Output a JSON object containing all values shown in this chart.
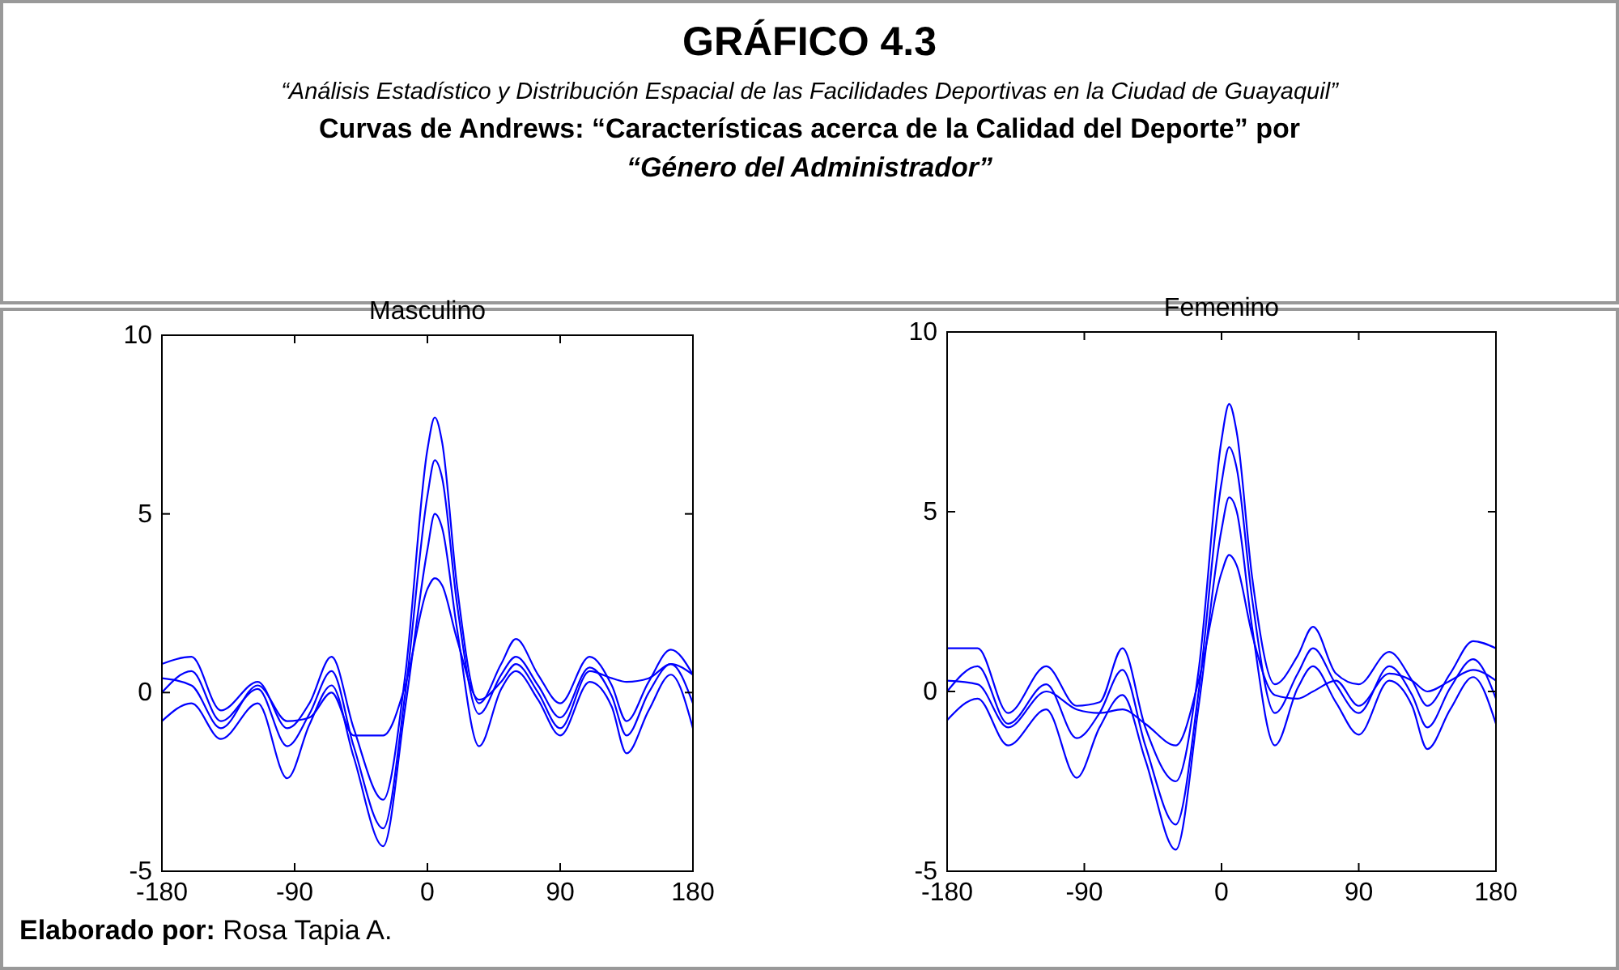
{
  "chart_data": [
    {
      "type": "line",
      "title": "Masculino",
      "xlim": [
        -180,
        180
      ],
      "ylim": [
        -5,
        10
      ],
      "xticks": [
        -180,
        -90,
        0,
        90,
        180
      ],
      "yticks": [
        -5,
        0,
        5,
        10
      ],
      "line_style": "solid",
      "annotations": [
        "GRÁFICO 4.3",
        "“Análisis Estadístico y Distribución Espacial de las Facilidades Deportivas en la Ciudad de Guayaquil”",
        "Curvas de Andrews: “Características acerca de la Calidad del Deporte” por",
        "“Género del Administrador”",
        "Elaborado por: Rosa Tapia A."
      ],
      "x": [
        -180,
        -160,
        -140,
        -115,
        -95,
        -80,
        -65,
        -50,
        -30,
        -15,
        0,
        5,
        10,
        20,
        35,
        50,
        60,
        75,
        90,
        110,
        125,
        135,
        150,
        165,
        180
      ],
      "series": [
        {
          "color": "#0000ff",
          "values": [
            0.8,
            1.0,
            -0.5,
            0.3,
            -1.0,
            -0.3,
            1.0,
            -1.0,
            -3.0,
            0.5,
            6.8,
            7.7,
            7.0,
            3.0,
            -0.3,
            0.8,
            1.5,
            0.5,
            -0.3,
            1.0,
            0.2,
            -0.8,
            0.3,
            1.2,
            0.5
          ]
        },
        {
          "color": "#0000ff",
          "values": [
            0,
            0.6,
            -0.8,
            0.1,
            -1.5,
            -0.6,
            0.6,
            -1.5,
            -3.8,
            0.0,
            5.5,
            6.5,
            6.0,
            2.5,
            -0.6,
            0.5,
            1.0,
            0.2,
            -0.7,
            0.7,
            -0.1,
            -1.2,
            0,
            0.8,
            -0.3
          ]
        },
        {
          "color": "#0000ff",
          "values": [
            -0.8,
            -0.3,
            -1.3,
            -0.3,
            -2.4,
            -0.9,
            0.2,
            -1.8,
            -4.3,
            -0.4,
            4.0,
            5.0,
            4.6,
            1.8,
            -1.5,
            0.1,
            0.6,
            -0.2,
            -1.2,
            0.3,
            -0.4,
            -1.7,
            -0.5,
            0.5,
            -1.0
          ]
        },
        {
          "color": "#0000ff",
          "values": [
            0.4,
            0.2,
            -1.0,
            0.2,
            -0.8,
            -0.7,
            0.0,
            -1.2,
            -1.2,
            0.2,
            2.9,
            3.2,
            3.0,
            1.5,
            -0.2,
            0.3,
            0.8,
            0.0,
            -1.0,
            0.6,
            0.4,
            0.3,
            0.4,
            0.8,
            0.5
          ]
        }
      ]
    },
    {
      "type": "line",
      "title": "Femenino",
      "xlim": [
        -180,
        180
      ],
      "ylim": [
        -5,
        10
      ],
      "xticks": [
        -180,
        -90,
        0,
        90,
        180
      ],
      "yticks": [
        -5,
        0,
        5,
        10
      ],
      "line_style": "solid",
      "x": [
        -180,
        -160,
        -140,
        -115,
        -95,
        -80,
        -65,
        -50,
        -30,
        -15,
        0,
        5,
        10,
        20,
        35,
        50,
        60,
        75,
        90,
        110,
        125,
        135,
        150,
        165,
        180
      ],
      "series": [
        {
          "color": "#0000ff",
          "values": [
            1.2,
            1.2,
            -0.6,
            0.7,
            -0.4,
            -0.3,
            1.2,
            -1.0,
            -2.5,
            0.6,
            7.0,
            8.0,
            7.2,
            3.2,
            0.2,
            1.0,
            1.8,
            0.5,
            0.2,
            1.1,
            0.3,
            -0.4,
            0.5,
            1.4,
            1.2
          ]
        },
        {
          "color": "#0000ff",
          "values": [
            0,
            0.7,
            -0.9,
            0.2,
            -1.3,
            -0.6,
            0.6,
            -1.5,
            -3.7,
            0.0,
            5.8,
            6.8,
            6.2,
            2.6,
            -0.6,
            0.5,
            1.2,
            0.2,
            -0.6,
            0.7,
            -0.1,
            -1.0,
            0.1,
            0.9,
            -0.2
          ]
        },
        {
          "color": "#0000ff",
          "values": [
            -0.8,
            -0.2,
            -1.5,
            -0.5,
            -2.4,
            -1.0,
            -0.1,
            -1.9,
            -4.4,
            -0.4,
            4.5,
            5.4,
            5.0,
            1.8,
            -1.5,
            0.1,
            0.7,
            -0.3,
            -1.2,
            0.3,
            -0.4,
            -1.6,
            -0.5,
            0.4,
            -0.9
          ]
        },
        {
          "color": "#0000ff",
          "values": [
            0.3,
            0.2,
            -1.0,
            0.0,
            -0.5,
            -0.6,
            -0.5,
            -0.9,
            -1.5,
            0.3,
            3.3,
            3.8,
            3.5,
            1.6,
            -0.1,
            -0.2,
            0.0,
            0.3,
            -0.4,
            0.5,
            0.3,
            0.0,
            0.3,
            0.6,
            0.3
          ]
        }
      ]
    }
  ]
}
